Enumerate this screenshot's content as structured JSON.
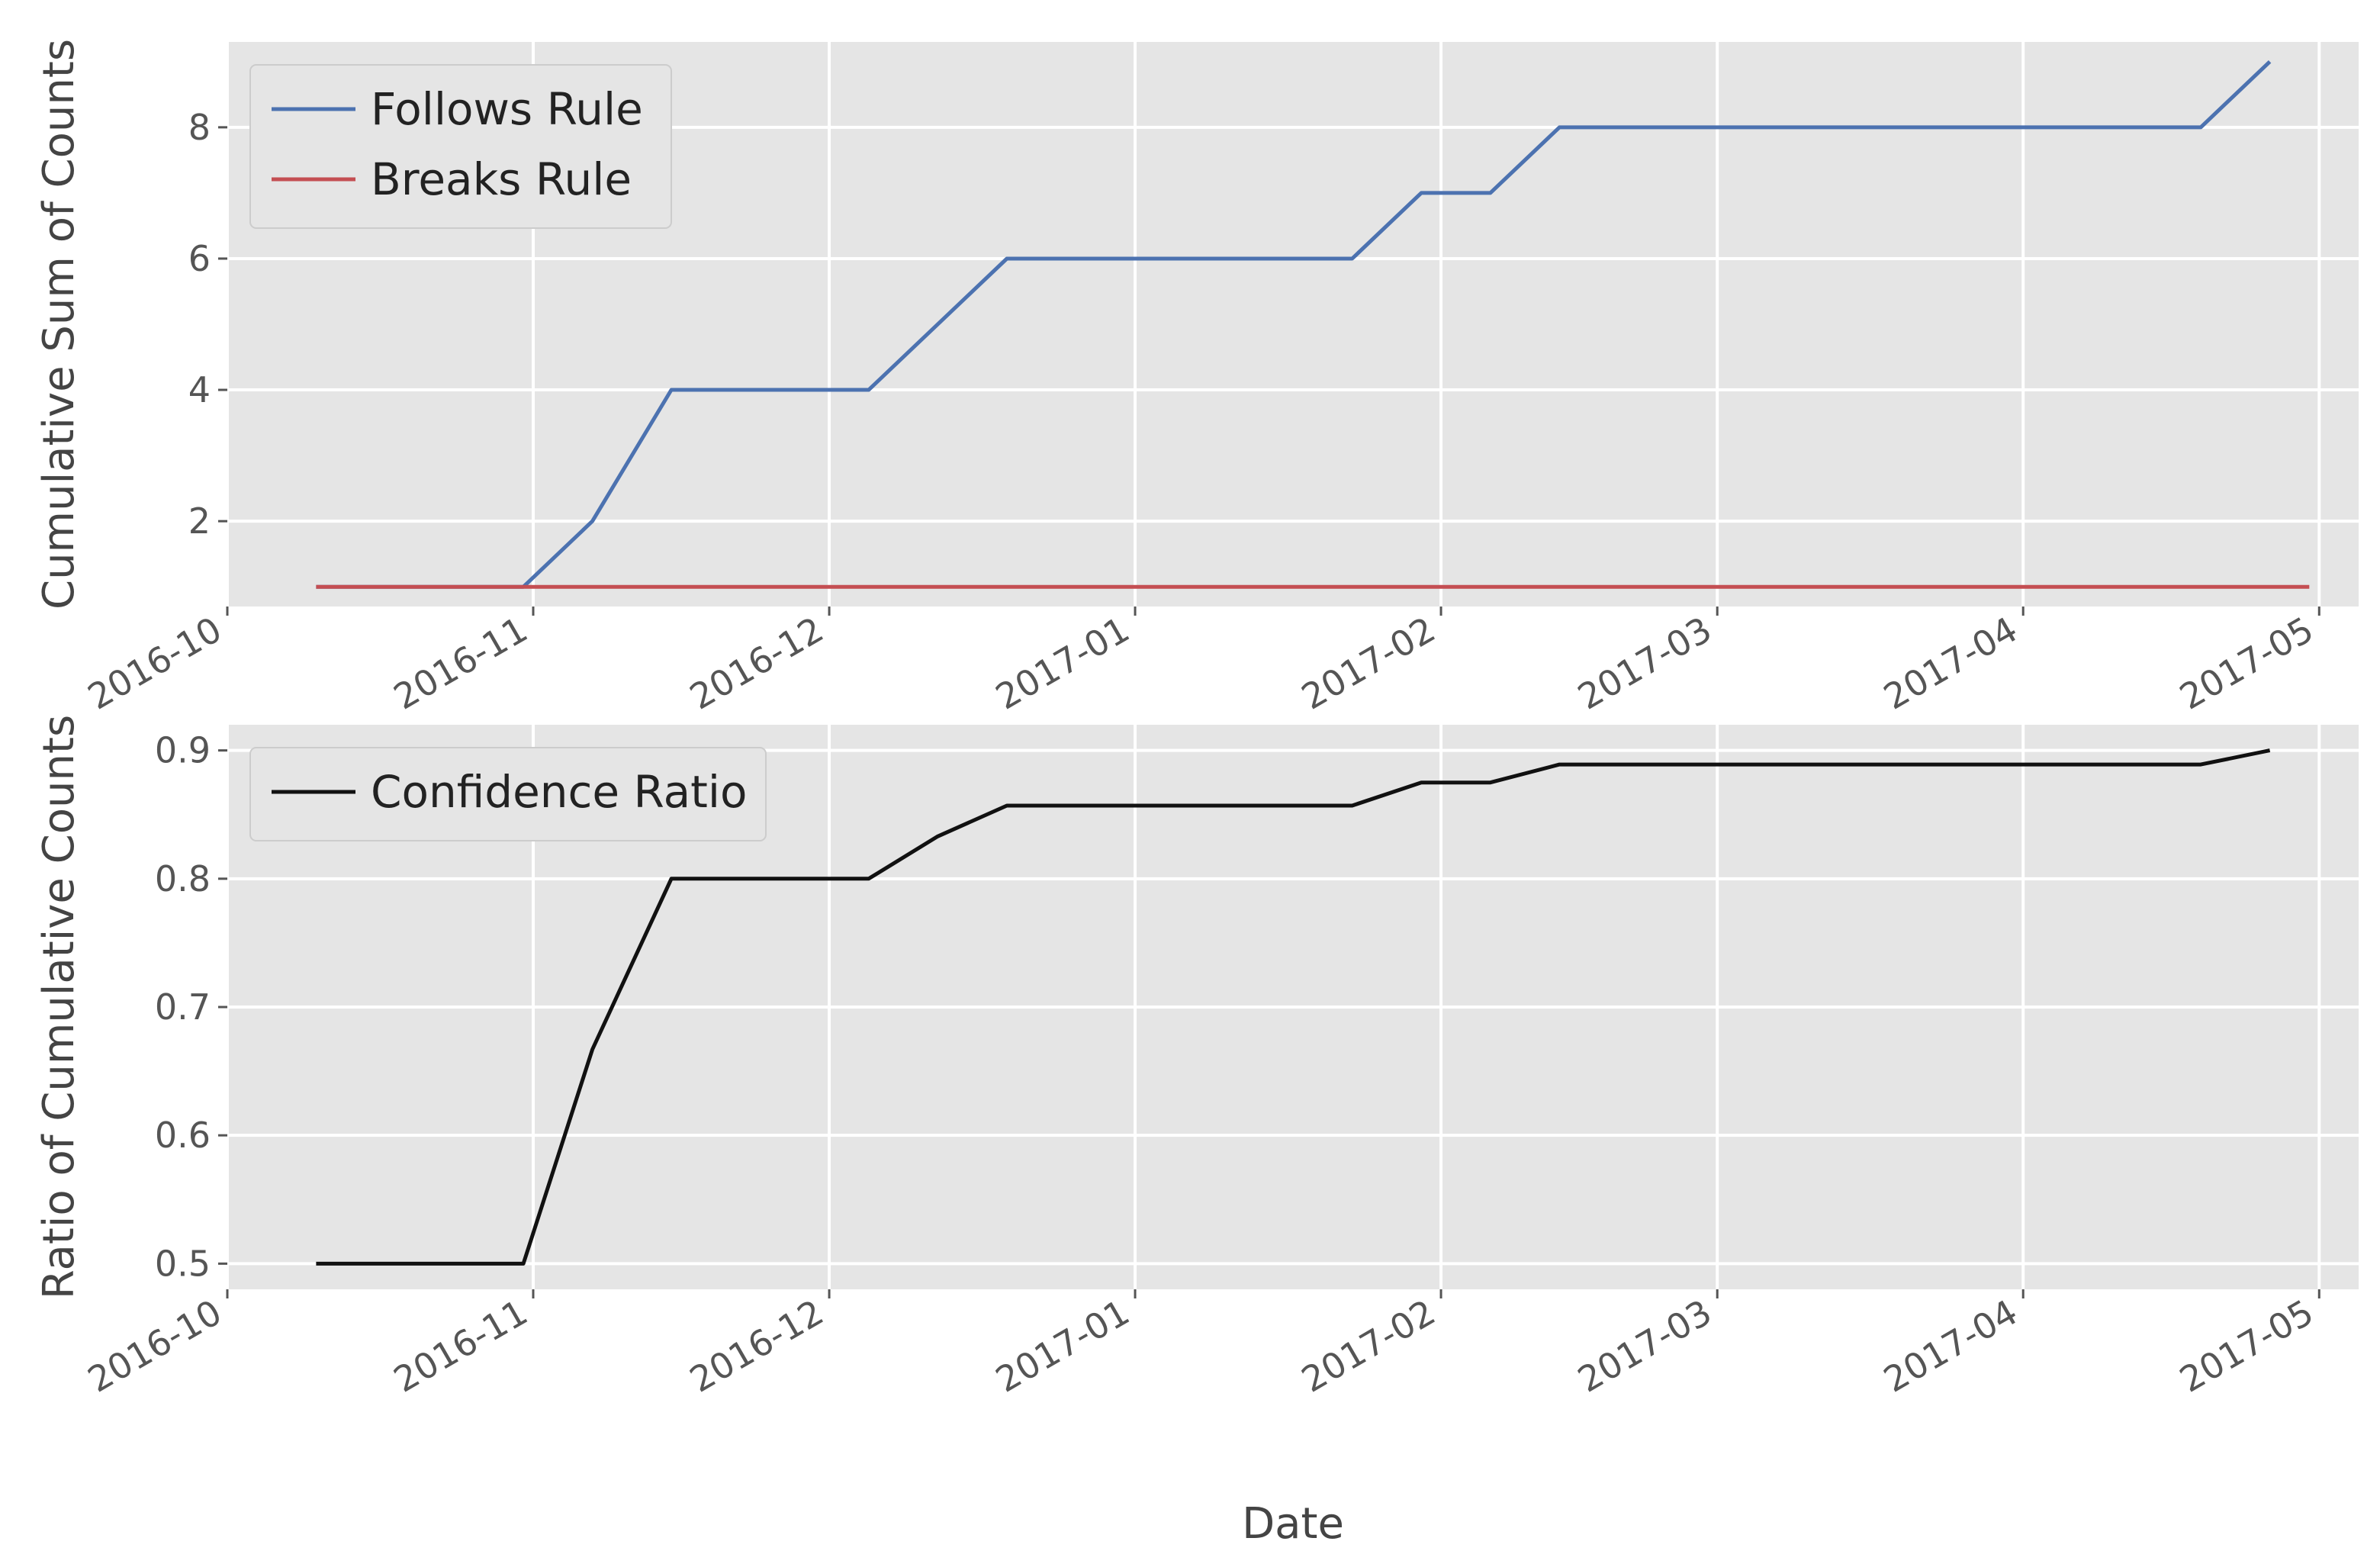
{
  "chart_data": [
    {
      "type": "line",
      "ylabel": "Cumulative Sum of Counts",
      "xlabel": "",
      "x_tick_labels": [
        "2016-10",
        "2016-11",
        "2016-12",
        "2017-01",
        "2017-02",
        "2017-03",
        "2017-04",
        "2017-05"
      ],
      "y_ticks": [
        "2",
        "4",
        "6",
        "8"
      ],
      "ylim": [
        0.7,
        9.3
      ],
      "xlim": [
        "2016-10-01",
        "2017-05-05"
      ],
      "grid": true,
      "legend": "top-left",
      "series": [
        {
          "name": "Follows Rule",
          "color": "#4c72b0",
          "x": [
            "2016-10-10",
            "2016-10-31",
            "2016-11-07",
            "2016-11-15",
            "2016-12-05",
            "2016-12-19",
            "2017-01-23",
            "2017-01-30",
            "2017-02-06",
            "2017-02-13",
            "2017-04-19",
            "2017-04-26"
          ],
          "y": [
            1,
            1,
            2,
            4,
            4,
            6,
            6,
            7,
            7,
            8,
            8,
            9
          ]
        },
        {
          "name": "Breaks Rule",
          "color": "#c44e52",
          "x": [
            "2016-10-10",
            "2017-04-30"
          ],
          "y": [
            1,
            1
          ]
        }
      ]
    },
    {
      "type": "line",
      "ylabel": "Ratio of Cumulative Counts",
      "xlabel": "Date",
      "x_tick_labels": [
        "2016-10",
        "2016-11",
        "2016-12",
        "2017-01",
        "2017-02",
        "2017-03",
        "2017-04",
        "2017-05"
      ],
      "y_ticks": [
        "0.5",
        "0.6",
        "0.7",
        "0.8",
        "0.9"
      ],
      "ylim": [
        0.48,
        0.92
      ],
      "xlim": [
        "2016-10-01",
        "2017-05-05"
      ],
      "grid": true,
      "legend": "top-left",
      "series": [
        {
          "name": "Confidence Ratio",
          "color": "#111111",
          "x": [
            "2016-10-10",
            "2016-10-31",
            "2016-11-07",
            "2016-11-15",
            "2016-12-05",
            "2016-12-12",
            "2016-12-19",
            "2017-01-23",
            "2017-01-30",
            "2017-02-06",
            "2017-02-13",
            "2017-04-19",
            "2017-04-26"
          ],
          "y": [
            0.5,
            0.5,
            0.667,
            0.8,
            0.8,
            0.833,
            0.857,
            0.857,
            0.875,
            0.875,
            0.889,
            0.889,
            0.9
          ]
        }
      ]
    }
  ]
}
